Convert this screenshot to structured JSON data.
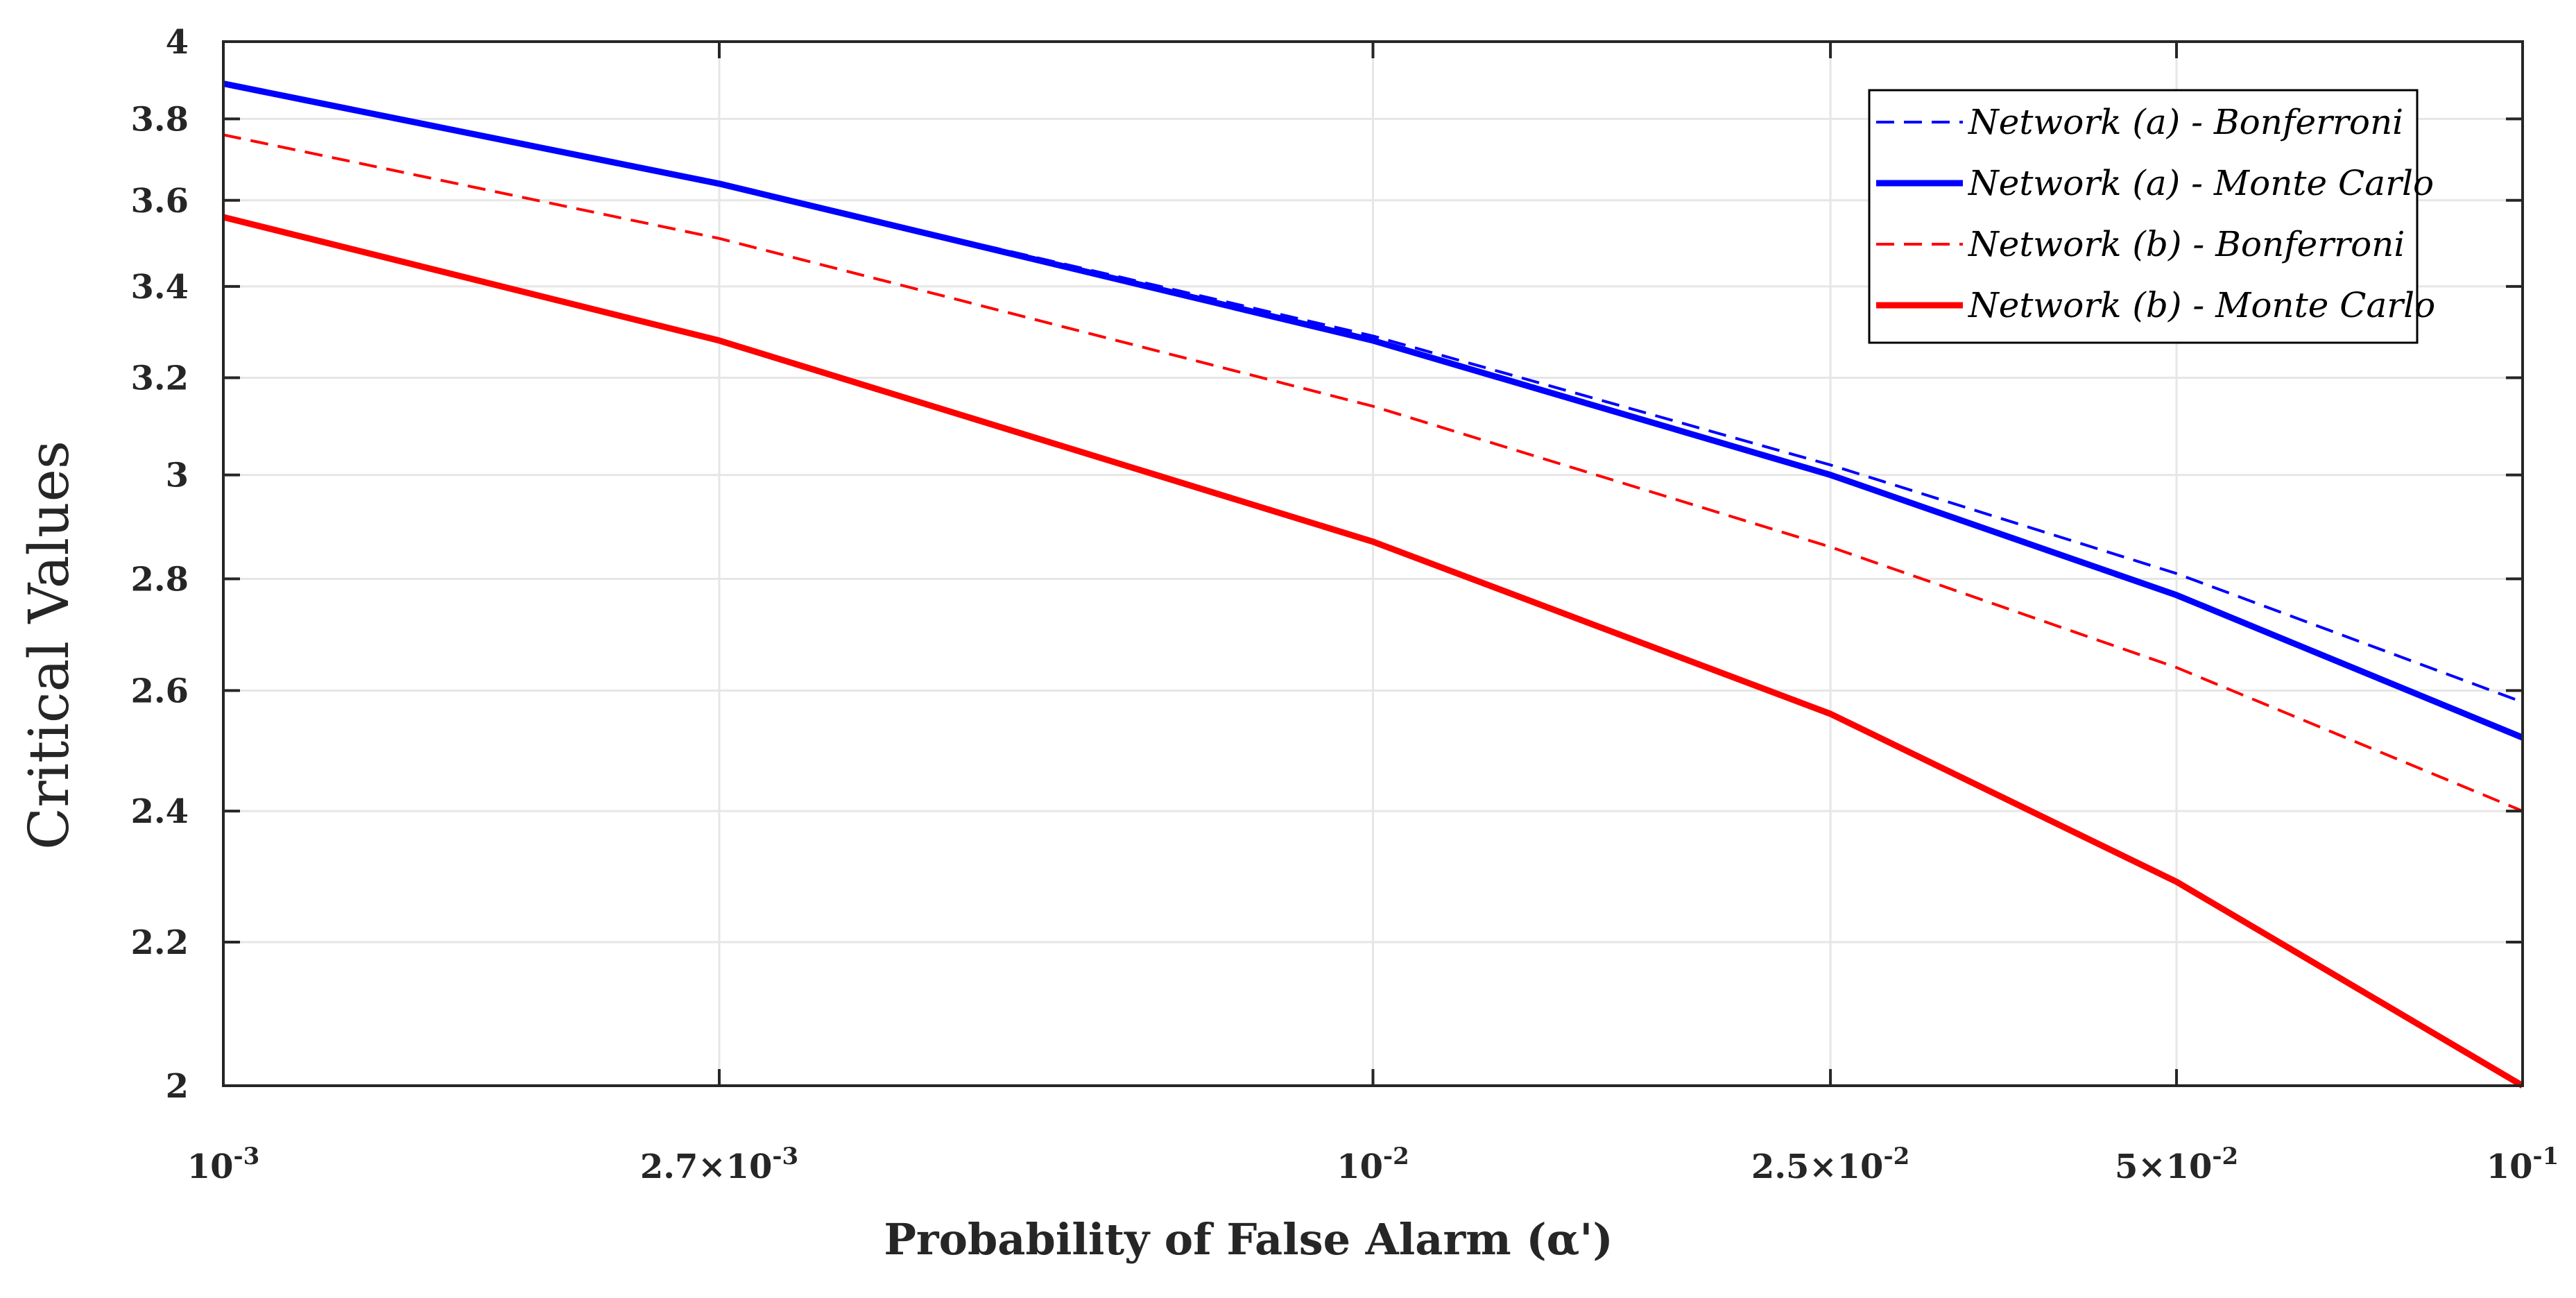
{
  "chart_data": {
    "type": "line",
    "title": "",
    "xlabel": "Probability of False Alarm (α')",
    "ylabel": "Critical Values",
    "x_scale": "log",
    "y_scale": "log",
    "xlim": [
      0.001,
      0.1
    ],
    "ylim": [
      2,
      4
    ],
    "grid": true,
    "legend_position": "top-right",
    "x": [
      0.001,
      0.0027,
      0.01,
      0.025,
      0.05,
      0.1
    ],
    "x_tick_labels": [
      {
        "value": 0.001,
        "mantissa": "",
        "exponent": "-3"
      },
      {
        "value": 0.0027,
        "mantissa": "2.7",
        "exponent": "-3"
      },
      {
        "value": 0.01,
        "mantissa": "",
        "exponent": "-2"
      },
      {
        "value": 0.025,
        "mantissa": "2.5",
        "exponent": "-2"
      },
      {
        "value": 0.05,
        "mantissa": "5",
        "exponent": "-2"
      },
      {
        "value": 0.1,
        "mantissa": "",
        "exponent": "-1"
      }
    ],
    "y_ticks": [
      2,
      2.2,
      2.4,
      2.6,
      2.8,
      3,
      3.2,
      3.4,
      3.6,
      3.8,
      4
    ],
    "y_tick_labels": [
      "2",
      "2.2",
      "2.4",
      "2.6",
      "2.8",
      "3",
      "3.2",
      "3.4",
      "3.6",
      "3.8",
      "4"
    ],
    "series": [
      {
        "name": "Network (a) - Bonferroni",
        "color": "#0000ff",
        "style": "dashed",
        "values": [
          3.89,
          3.64,
          3.29,
          3.02,
          2.81,
          2.58
        ]
      },
      {
        "name": "Network (a) - Monte Carlo",
        "color": "#0000ff",
        "style": "solid",
        "values": [
          3.89,
          3.64,
          3.28,
          3.0,
          2.77,
          2.52
        ]
      },
      {
        "name": "Network (b) - Bonferroni",
        "color": "#ff0000",
        "style": "dashed",
        "values": [
          3.76,
          3.51,
          3.14,
          2.86,
          2.64,
          2.4
        ]
      },
      {
        "name": "Network (b) - Monte Carlo",
        "color": "#ff0000",
        "style": "solid",
        "values": [
          3.56,
          3.28,
          2.87,
          2.56,
          2.29,
          2.0
        ]
      }
    ]
  }
}
